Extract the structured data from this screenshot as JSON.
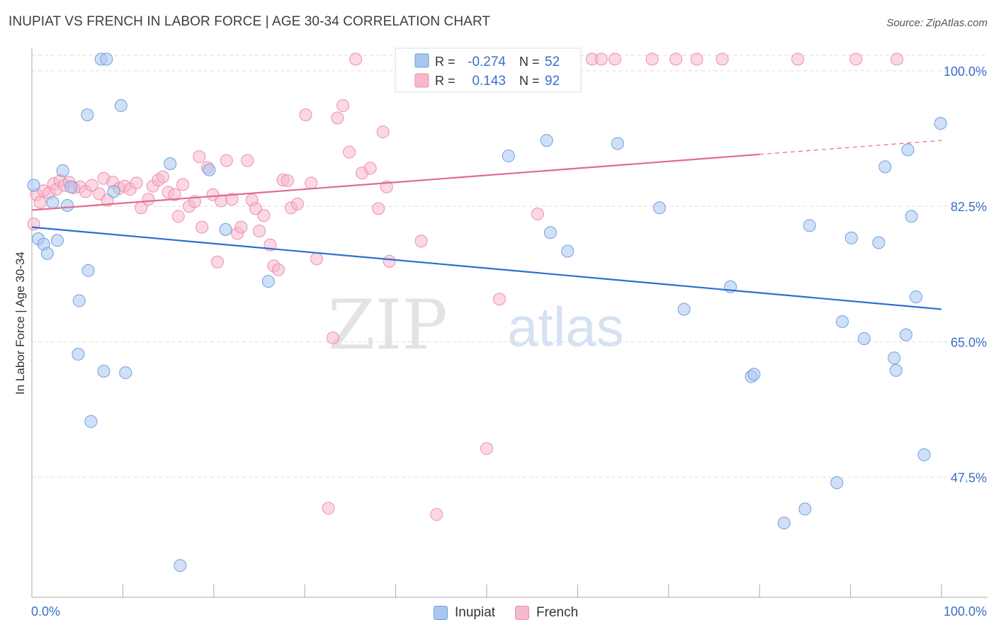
{
  "title": "INUPIAT VS FRENCH IN LABOR FORCE | AGE 30-34 CORRELATION CHART",
  "source": "Source: ZipAtlas.com",
  "watermark": {
    "zip": "ZIP",
    "atlas": "atlas"
  },
  "colors": {
    "inupiat_fill": "#a9c6ef",
    "inupiat_stroke": "#6f9fe0",
    "inupiat_line": "#2a6fd0",
    "french_fill": "#f7b8cb",
    "french_stroke": "#ec8fae",
    "french_line": "#e06a93",
    "value_text": "#3b6fc9",
    "grid": "#dddddd"
  },
  "stats_legend": {
    "rows": [
      {
        "series": "Inupiat",
        "r_label": "R =",
        "r_value": "-0.274",
        "n_label": "N =",
        "n_value": "52"
      },
      {
        "series": "French",
        "r_label": "R =",
        "r_value": "0.143",
        "n_label": "N =",
        "n_value": "92"
      }
    ]
  },
  "chart_data": {
    "type": "scatter",
    "title": "INUPIAT VS FRENCH IN LABOR FORCE | AGE 30-34 CORRELATION CHART",
    "ylabel": "In Labor Force | Age 30-34",
    "xlabel": "",
    "x_tick_labels": [
      "0.0%",
      "100.0%"
    ],
    "y_tick_labels": [
      "100.0%",
      "82.5%",
      "65.0%",
      "47.5%"
    ],
    "y_ticks": [
      100.0,
      82.5,
      65.0,
      47.5
    ],
    "xlim": [
      0,
      100
    ],
    "ylim": [
      32,
      102
    ],
    "grid": true,
    "legend_position": "bottom-center",
    "series": [
      {
        "name": "Inupiat",
        "r": -0.274,
        "n": 52,
        "trend": {
          "x": [
            0,
            100
          ],
          "y": [
            79.8,
            69.2
          ]
        },
        "points": [
          [
            0.2,
            85.2
          ],
          [
            0.7,
            78.3
          ],
          [
            1.3,
            77.6
          ],
          [
            1.7,
            76.4
          ],
          [
            2.3,
            83.0
          ],
          [
            2.8,
            78.1
          ],
          [
            3.4,
            87.1
          ],
          [
            3.9,
            82.6
          ],
          [
            4.3,
            85.0
          ],
          [
            5.1,
            63.4
          ],
          [
            5.2,
            70.3
          ],
          [
            6.1,
            94.3
          ],
          [
            6.2,
            74.2
          ],
          [
            6.5,
            54.7
          ],
          [
            7.6,
            101.5
          ],
          [
            7.9,
            61.2
          ],
          [
            8.2,
            101.5
          ],
          [
            9.0,
            84.4
          ],
          [
            9.8,
            95.5
          ],
          [
            10.3,
            61.0
          ],
          [
            15.2,
            88.0
          ],
          [
            16.3,
            36.1
          ],
          [
            19.5,
            87.2
          ],
          [
            21.3,
            79.5
          ],
          [
            26.0,
            72.8
          ],
          [
            52.4,
            89.0
          ],
          [
            56.6,
            91.0
          ],
          [
            57.0,
            79.1
          ],
          [
            58.9,
            76.7
          ],
          [
            64.4,
            90.6
          ],
          [
            69.0,
            82.3
          ],
          [
            71.7,
            69.2
          ],
          [
            76.8,
            72.1
          ],
          [
            79.1,
            60.5
          ],
          [
            79.4,
            60.8
          ],
          [
            82.7,
            41.6
          ],
          [
            85.0,
            43.4
          ],
          [
            85.5,
            80.0
          ],
          [
            88.5,
            46.8
          ],
          [
            89.1,
            67.6
          ],
          [
            90.1,
            78.4
          ],
          [
            91.5,
            65.4
          ],
          [
            93.1,
            77.8
          ],
          [
            93.8,
            87.6
          ],
          [
            94.8,
            62.9
          ],
          [
            95.0,
            61.3
          ],
          [
            96.1,
            65.9
          ],
          [
            96.3,
            89.8
          ],
          [
            96.7,
            81.2
          ],
          [
            97.2,
            70.8
          ],
          [
            98.1,
            50.4
          ],
          [
            99.9,
            93.2
          ]
        ]
      },
      {
        "name": "French",
        "r": 0.143,
        "n": 92,
        "trend": {
          "x": [
            0,
            80,
            100
          ],
          "y": [
            82.0,
            89.2,
            91.0
          ],
          "dashed_from_x": 80
        },
        "points": [
          [
            0.2,
            80.2
          ],
          [
            0.5,
            84.0
          ],
          [
            0.9,
            83.0
          ],
          [
            1.3,
            84.5
          ],
          [
            1.9,
            84.2
          ],
          [
            2.4,
            85.4
          ],
          [
            2.7,
            84.7
          ],
          [
            3.1,
            85.8
          ],
          [
            3.6,
            85.2
          ],
          [
            4.1,
            85.6
          ],
          [
            4.6,
            84.9
          ],
          [
            5.3,
            85.0
          ],
          [
            5.9,
            84.4
          ],
          [
            6.6,
            85.2
          ],
          [
            7.4,
            84.1
          ],
          [
            7.9,
            86.1
          ],
          [
            8.3,
            83.3
          ],
          [
            8.9,
            85.6
          ],
          [
            9.6,
            84.8
          ],
          [
            10.2,
            85.1
          ],
          [
            10.8,
            84.7
          ],
          [
            11.5,
            85.5
          ],
          [
            12.0,
            82.3
          ],
          [
            12.8,
            83.4
          ],
          [
            13.3,
            85.1
          ],
          [
            13.9,
            85.9
          ],
          [
            14.4,
            86.3
          ],
          [
            15.0,
            84.3
          ],
          [
            15.7,
            84.0
          ],
          [
            16.1,
            81.2
          ],
          [
            16.6,
            85.3
          ],
          [
            17.3,
            82.5
          ],
          [
            17.9,
            83.1
          ],
          [
            18.4,
            88.9
          ],
          [
            18.7,
            79.8
          ],
          [
            19.3,
            87.5
          ],
          [
            19.9,
            84.0
          ],
          [
            20.4,
            75.3
          ],
          [
            20.8,
            83.2
          ],
          [
            21.4,
            88.4
          ],
          [
            22.0,
            83.4
          ],
          [
            22.6,
            79.0
          ],
          [
            23.0,
            79.8
          ],
          [
            23.7,
            88.4
          ],
          [
            24.2,
            83.3
          ],
          [
            24.6,
            82.2
          ],
          [
            25.0,
            79.3
          ],
          [
            25.5,
            81.3
          ],
          [
            26.2,
            77.5
          ],
          [
            26.6,
            74.8
          ],
          [
            27.1,
            74.3
          ],
          [
            27.6,
            85.9
          ],
          [
            28.1,
            85.8
          ],
          [
            28.5,
            82.3
          ],
          [
            29.2,
            82.8
          ],
          [
            30.1,
            94.3
          ],
          [
            30.7,
            85.5
          ],
          [
            31.3,
            75.7
          ],
          [
            32.6,
            43.5
          ],
          [
            33.1,
            65.5
          ],
          [
            33.6,
            93.9
          ],
          [
            34.2,
            95.5
          ],
          [
            34.9,
            89.5
          ],
          [
            35.6,
            101.5
          ],
          [
            36.3,
            86.8
          ],
          [
            37.2,
            87.4
          ],
          [
            38.1,
            82.2
          ],
          [
            38.6,
            92.1
          ],
          [
            39.0,
            85.0
          ],
          [
            39.3,
            75.4
          ],
          [
            41.8,
            101.5
          ],
          [
            42.3,
            101.5
          ],
          [
            42.8,
            78.0
          ],
          [
            43.3,
            101.5
          ],
          [
            44.5,
            42.7
          ],
          [
            45.1,
            101.5
          ],
          [
            47.2,
            101.5
          ],
          [
            48.0,
            101.5
          ],
          [
            50.0,
            51.2
          ],
          [
            51.4,
            70.5
          ],
          [
            52.0,
            101.5
          ],
          [
            55.6,
            81.5
          ],
          [
            61.6,
            101.5
          ],
          [
            62.6,
            101.5
          ],
          [
            64.1,
            101.5
          ],
          [
            68.2,
            101.5
          ],
          [
            70.8,
            101.5
          ],
          [
            73.1,
            101.5
          ],
          [
            75.9,
            101.5
          ],
          [
            84.2,
            101.5
          ],
          [
            90.6,
            101.5
          ],
          [
            95.1,
            101.5
          ]
        ]
      }
    ]
  },
  "legend": {
    "items": [
      {
        "label": "Inupiat"
      },
      {
        "label": "French"
      }
    ]
  }
}
